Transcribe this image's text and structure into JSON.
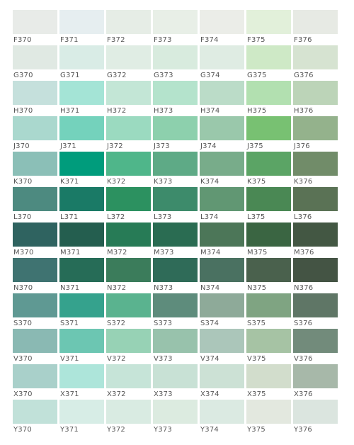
{
  "swatches": [
    [
      {
        "code": "F370",
        "color": "#e8ebe8"
      },
      {
        "code": "F371",
        "color": "#e6eef0"
      },
      {
        "code": "F372",
        "color": "#e6ede6"
      },
      {
        "code": "F373",
        "color": "#e8efe7"
      },
      {
        "code": "F374",
        "color": "#ebede8"
      },
      {
        "code": "F375",
        "color": "#e2f0da"
      },
      {
        "code": "F376",
        "color": "#e7eae4"
      }
    ],
    [
      {
        "code": "G370",
        "color": "#e0e9e3"
      },
      {
        "code": "G371",
        "color": "#d9ece6"
      },
      {
        "code": "G372",
        "color": "#e0ede4"
      },
      {
        "code": "G373",
        "color": "#d8ebde"
      },
      {
        "code": "G374",
        "color": "#dfece3"
      },
      {
        "code": "G375",
        "color": "#cee9c6"
      },
      {
        "code": "G376",
        "color": "#d6e3d1"
      }
    ],
    [
      {
        "code": "H370",
        "color": "#c5e0dc"
      },
      {
        "code": "H371",
        "color": "#a4e4d6"
      },
      {
        "code": "H372",
        "color": "#c3e6d6"
      },
      {
        "code": "H373",
        "color": "#b4e3cc"
      },
      {
        "code": "H374",
        "color": "#bbdcc8"
      },
      {
        "code": "H375",
        "color": "#b2e0b0"
      },
      {
        "code": "H376",
        "color": "#bcd4b8"
      }
    ],
    [
      {
        "code": "J370",
        "color": "#aad8ce"
      },
      {
        "code": "J371",
        "color": "#74d2bc"
      },
      {
        "code": "J372",
        "color": "#9bdac0"
      },
      {
        "code": "J373",
        "color": "#8dd0ad"
      },
      {
        "code": "J374",
        "color": "#9ac8ab"
      },
      {
        "code": "J375",
        "color": "#78c172"
      },
      {
        "code": "J376",
        "color": "#94b28c"
      }
    ],
    [
      {
        "code": "K370",
        "color": "#8bbfb7"
      },
      {
        "code": "K371",
        "color": "#009c7c"
      },
      {
        "code": "K372",
        "color": "#4fb68a"
      },
      {
        "code": "K373",
        "color": "#5eaa86"
      },
      {
        "code": "K374",
        "color": "#78ac8a"
      },
      {
        "code": "K375",
        "color": "#5ba465"
      },
      {
        "code": "K376",
        "color": "#718c69"
      }
    ],
    [
      {
        "code": "L370",
        "color": "#4d8a80"
      },
      {
        "code": "L371",
        "color": "#1a7a66"
      },
      {
        "code": "L372",
        "color": "#2c9160"
      },
      {
        "code": "L373",
        "color": "#3d8b6b"
      },
      {
        "code": "L374",
        "color": "#619773"
      },
      {
        "code": "L375",
        "color": "#4a8854"
      },
      {
        "code": "L376",
        "color": "#5a7255"
      }
    ],
    [
      {
        "code": "M370",
        "color": "#2f6360"
      },
      {
        "code": "M371",
        "color": "#245e4f"
      },
      {
        "code": "M372",
        "color": "#277b56"
      },
      {
        "code": "M373",
        "color": "#2a6c52"
      },
      {
        "code": "M374",
        "color": "#4c7658"
      },
      {
        "code": "M375",
        "color": "#3a6542"
      },
      {
        "code": "M376",
        "color": "#435743"
      }
    ],
    [
      {
        "code": "N370",
        "color": "#3f7371"
      },
      {
        "code": "N371",
        "color": "#266c57"
      },
      {
        "code": "N372",
        "color": "#3b7c5b"
      },
      {
        "code": "N373",
        "color": "#2f6b58"
      },
      {
        "code": "N374",
        "color": "#4a7161"
      },
      {
        "code": "N375",
        "color": "#4a614d"
      },
      {
        "code": "N376",
        "color": "#445444"
      }
    ],
    [
      {
        "code": "S370",
        "color": "#5f9993"
      },
      {
        "code": "S371",
        "color": "#35a28d"
      },
      {
        "code": "S372",
        "color": "#5ab38f"
      },
      {
        "code": "S373",
        "color": "#5e8c7c"
      },
      {
        "code": "S374",
        "color": "#8eaa99"
      },
      {
        "code": "S375",
        "color": "#7fa482"
      },
      {
        "code": "S376",
        "color": "#5f7666"
      }
    ],
    [
      {
        "code": "V370",
        "color": "#8ab9b3"
      },
      {
        "code": "V371",
        "color": "#6cc6b2"
      },
      {
        "code": "V372",
        "color": "#97d2b5"
      },
      {
        "code": "V373",
        "color": "#98c2ac"
      },
      {
        "code": "V374",
        "color": "#abc6ba"
      },
      {
        "code": "V375",
        "color": "#a6c3a4"
      },
      {
        "code": "V376",
        "color": "#728b7b"
      }
    ],
    [
      {
        "code": "X370",
        "color": "#a9d0ca"
      },
      {
        "code": "X371",
        "color": "#ade5da"
      },
      {
        "code": "X372",
        "color": "#c6e4d8"
      },
      {
        "code": "X373",
        "color": "#c8e1d5"
      },
      {
        "code": "X374",
        "color": "#cce1d5"
      },
      {
        "code": "X375",
        "color": "#d2ddcc"
      },
      {
        "code": "X376",
        "color": "#a7b8a9"
      }
    ],
    [
      {
        "code": "Y370",
        "color": "#c1e1d9"
      },
      {
        "code": "Y371",
        "color": "#d7ede6"
      },
      {
        "code": "Y372",
        "color": "#d9ebe2"
      },
      {
        "code": "Y373",
        "color": "#dcebe0"
      },
      {
        "code": "Y374",
        "color": "#dbeae2"
      },
      {
        "code": "Y375",
        "color": "#e3e8df"
      },
      {
        "code": "Y376",
        "color": "#dbe5df"
      }
    ]
  ]
}
